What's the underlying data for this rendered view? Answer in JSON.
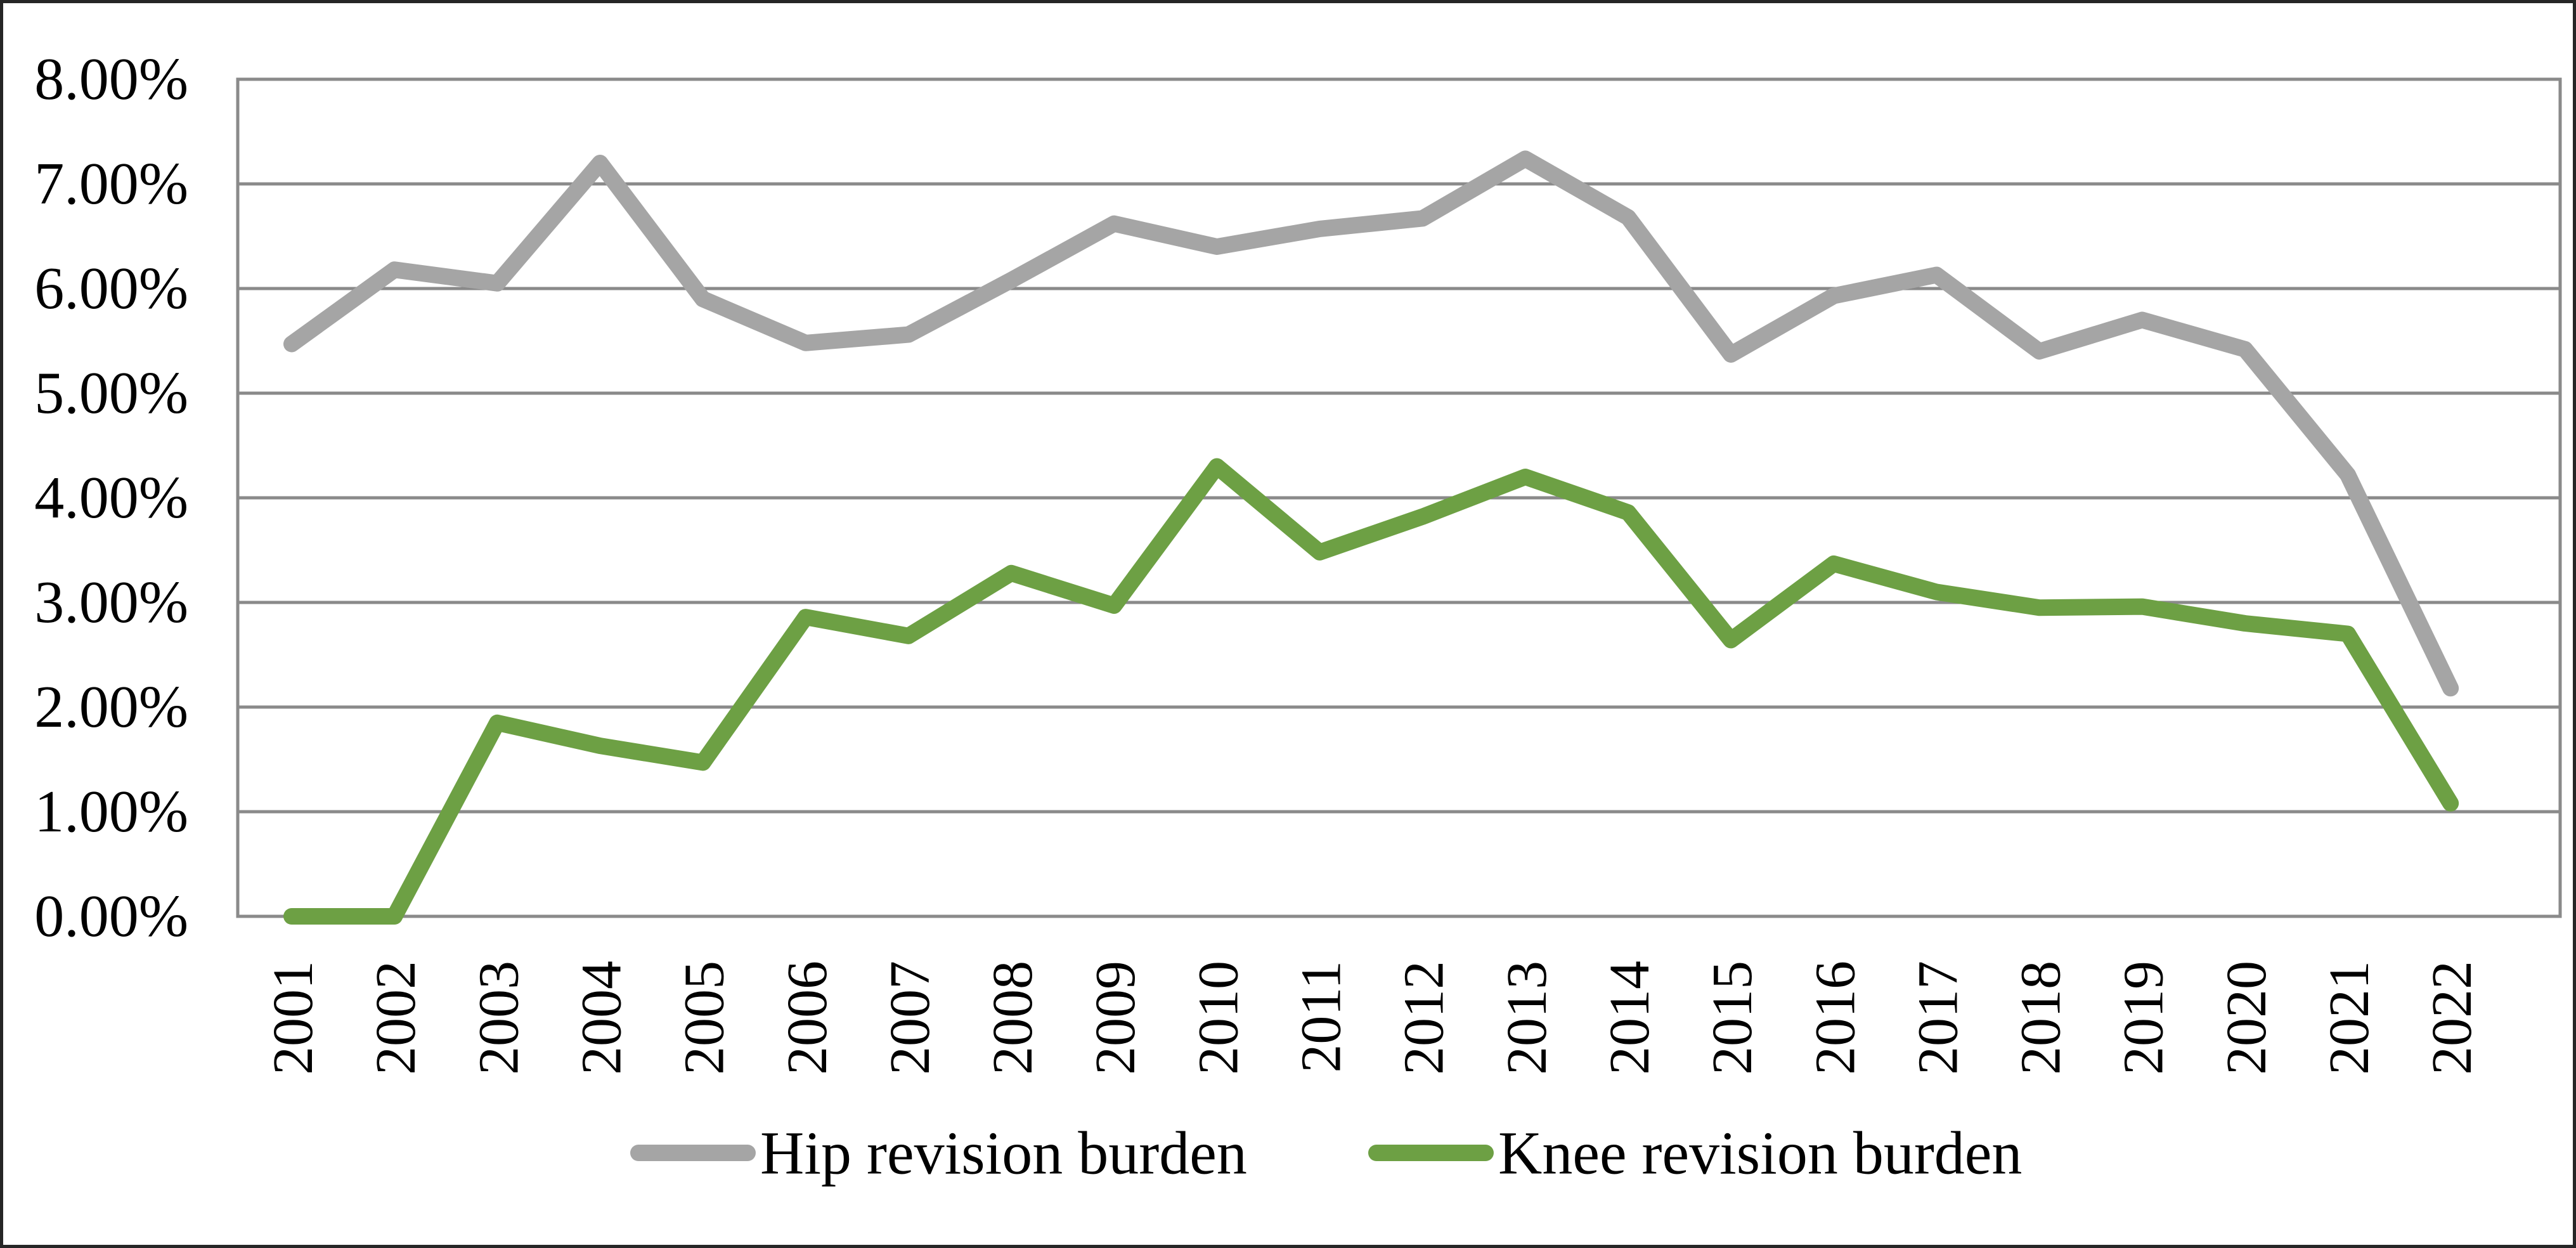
{
  "chart_data": {
    "type": "line",
    "title": "",
    "xlabel": "",
    "ylabel": "",
    "categories": [
      "2001",
      "2002",
      "2003",
      "2004",
      "2005",
      "2006",
      "2007",
      "2008",
      "2009",
      "2010",
      "2011",
      "2012",
      "2013",
      "2014",
      "2015",
      "2016",
      "2017",
      "2018",
      "2019",
      "2020",
      "2021",
      "2022"
    ],
    "series": [
      {
        "name": "Hip revision burden",
        "color": "#A5A5A5",
        "values": [
          5.47,
          6.18,
          6.05,
          7.2,
          5.9,
          5.48,
          5.56,
          6.08,
          6.62,
          6.4,
          6.57,
          6.67,
          7.24,
          6.68,
          5.37,
          5.93,
          6.13,
          5.4,
          5.7,
          5.42,
          4.22,
          2.18
        ]
      },
      {
        "name": "Knee revision burden",
        "color": "#6DA044",
        "values": [
          0.0,
          0.0,
          1.85,
          1.63,
          1.47,
          2.86,
          2.68,
          3.28,
          2.97,
          4.3,
          3.48,
          3.82,
          4.2,
          3.86,
          2.64,
          3.37,
          3.1,
          2.95,
          2.96,
          2.8,
          2.7,
          1.08
        ]
      }
    ],
    "y_axis": {
      "min": 0,
      "max": 8,
      "step": 1,
      "tick_labels": [
        "0.00%",
        "1.00%",
        "2.00%",
        "3.00%",
        "4.00%",
        "5.00%",
        "6.00%",
        "7.00%",
        "8.00%"
      ]
    },
    "grid": true,
    "gridline_color": "#8A8A8A",
    "plot_border_color": "#8A8A8A",
    "outer_border_color": "#262626",
    "background_color": "#FFFFFF",
    "legend_position": "bottom"
  }
}
